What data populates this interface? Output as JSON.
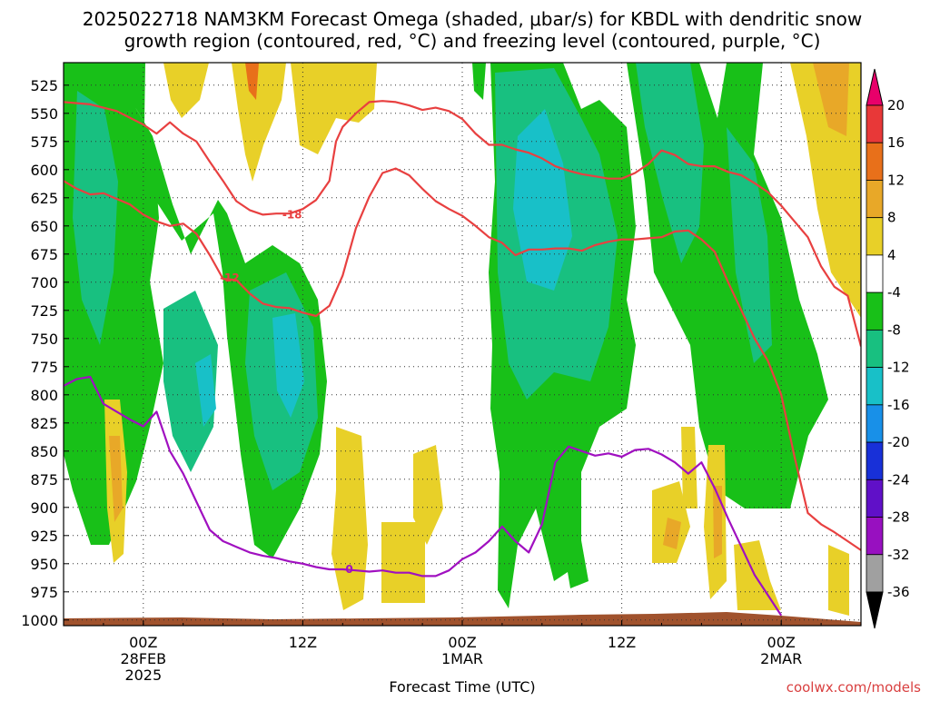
{
  "title": {
    "line1": "2025022718 NAM3KM Forecast Omega (shaded, μbar/s) for KBDL with dendritic snow",
    "line2": "growth region (contoured, red, °C) and freezing level (contoured, purple, °C)"
  },
  "credit": "coolwx.com/models",
  "chart_data": {
    "type": "heatmap",
    "xlabel": "Forecast Time (UTC)",
    "ylabel": "",
    "y_ticks": [
      "525",
      "550",
      "575",
      "600",
      "625",
      "650",
      "675",
      "700",
      "725",
      "750",
      "775",
      "800",
      "825",
      "850",
      "875",
      "900",
      "925",
      "950",
      "975",
      "1000"
    ],
    "x_ticks": [
      {
        "hour": 6,
        "lines": [
          "00Z",
          "28FEB",
          "2025"
        ]
      },
      {
        "hour": 18,
        "lines": [
          "12Z"
        ]
      },
      {
        "hour": 30,
        "lines": [
          "00Z",
          "1MAR"
        ]
      },
      {
        "hour": 42,
        "lines": [
          "12Z"
        ]
      },
      {
        "hour": 54,
        "lines": [
          "00Z",
          "2MAR"
        ]
      }
    ],
    "xlim_hours": [
      0,
      60
    ],
    "ylim_hpa": [
      505,
      1005
    ],
    "grid": true,
    "colorbar": {
      "levels": [
        "20",
        "16",
        "12",
        "8",
        "4",
        "-4",
        "-8",
        "-12",
        "-16",
        "-20",
        "-24",
        "-28",
        "-32",
        "-36"
      ],
      "colors": [
        "#e8006a",
        "#e83838",
        "#e8701a",
        "#e8a828",
        "#e8d028",
        "#ffffff",
        "#18c018",
        "#18c080",
        "#18c0c8",
        "#1890e8",
        "#1830d8",
        "#6010c8",
        "#9810c0",
        "#a0a0a0",
        "#000000"
      ]
    },
    "series": [
      {
        "label": "-18",
        "color": "#e84040",
        "label_at": {
          "hour": 17.2,
          "p": 640
        },
        "points": [
          [
            0,
            540
          ],
          [
            2,
            542
          ],
          [
            4,
            548
          ],
          [
            6,
            560
          ],
          [
            7,
            568
          ],
          [
            8,
            558
          ],
          [
            9,
            568
          ],
          [
            10,
            575
          ],
          [
            11,
            593
          ],
          [
            12,
            610
          ],
          [
            13,
            628
          ],
          [
            14,
            636
          ],
          [
            15,
            640
          ],
          [
            16,
            639
          ],
          [
            17,
            639
          ],
          [
            18,
            635
          ],
          [
            19,
            627
          ],
          [
            20,
            610
          ],
          [
            20.5,
            575
          ],
          [
            21,
            562
          ],
          [
            22,
            550
          ],
          [
            23,
            540
          ],
          [
            24,
            539
          ],
          [
            25,
            540
          ],
          [
            26,
            543
          ],
          [
            27,
            547
          ],
          [
            28,
            545
          ],
          [
            29,
            548
          ],
          [
            30,
            555
          ],
          [
            31,
            568
          ],
          [
            32,
            578
          ],
          [
            33,
            578
          ],
          [
            34,
            582
          ],
          [
            35,
            585
          ],
          [
            36,
            590
          ],
          [
            37,
            597
          ],
          [
            38,
            601
          ],
          [
            39,
            604
          ],
          [
            40,
            606
          ],
          [
            41,
            608
          ],
          [
            42,
            608
          ],
          [
            43,
            603
          ],
          [
            44,
            595
          ],
          [
            45,
            583
          ],
          [
            46,
            587
          ],
          [
            47,
            595
          ],
          [
            48,
            597
          ],
          [
            49,
            597
          ],
          [
            50,
            602
          ],
          [
            51,
            605
          ],
          [
            52,
            612
          ],
          [
            53,
            620
          ],
          [
            54,
            632
          ],
          [
            55,
            646
          ],
          [
            56,
            660
          ],
          [
            57,
            686
          ],
          [
            58,
            704
          ],
          [
            59,
            712
          ],
          [
            60,
            757
          ]
        ]
      },
      {
        "label": "-12",
        "color": "#e84040",
        "label_at": {
          "hour": 12.5,
          "p": 696
        },
        "points": [
          [
            0,
            610
          ],
          [
            1,
            617
          ],
          [
            2,
            622
          ],
          [
            3,
            621
          ],
          [
            4,
            626
          ],
          [
            5,
            631
          ],
          [
            6,
            640
          ],
          [
            7,
            646
          ],
          [
            8,
            650
          ],
          [
            9,
            648
          ],
          [
            10,
            657
          ],
          [
            11,
            676
          ],
          [
            12,
            697
          ],
          [
            13,
            698
          ],
          [
            14,
            710
          ],
          [
            15,
            719
          ],
          [
            16,
            722
          ],
          [
            17,
            723
          ],
          [
            18,
            727
          ],
          [
            19,
            730
          ],
          [
            20,
            721
          ],
          [
            21,
            694
          ],
          [
            22,
            652
          ],
          [
            23,
            624
          ],
          [
            24,
            603
          ],
          [
            25,
            599
          ],
          [
            26,
            605
          ],
          [
            27,
            617
          ],
          [
            28,
            628
          ],
          [
            29,
            635
          ],
          [
            30,
            641
          ],
          [
            31,
            650
          ],
          [
            32,
            660
          ],
          [
            33,
            665
          ],
          [
            34,
            676
          ],
          [
            35,
            671
          ],
          [
            36,
            671
          ],
          [
            37,
            670
          ],
          [
            38,
            670
          ],
          [
            39,
            672
          ],
          [
            40,
            667
          ],
          [
            41,
            664
          ],
          [
            42,
            662
          ],
          [
            43,
            662
          ],
          [
            44,
            661
          ],
          [
            45,
            660
          ],
          [
            46,
            655
          ],
          [
            47,
            654
          ],
          [
            48,
            662
          ],
          [
            49,
            673
          ],
          [
            50,
            700
          ],
          [
            51,
            725
          ],
          [
            52,
            750
          ],
          [
            53,
            770
          ],
          [
            54,
            800
          ],
          [
            55,
            855
          ],
          [
            56,
            905
          ],
          [
            57,
            915
          ],
          [
            58,
            922
          ],
          [
            59,
            930
          ],
          [
            60,
            938
          ]
        ]
      },
      {
        "label": "0",
        "color": "#a010c0",
        "label_at": {
          "hour": 21.5,
          "p": 955
        },
        "points": [
          [
            0,
            792
          ],
          [
            1,
            786
          ],
          [
            2,
            784
          ],
          [
            3,
            808
          ],
          [
            4,
            815
          ],
          [
            5,
            822
          ],
          [
            6,
            828
          ],
          [
            7,
            815
          ],
          [
            8,
            850
          ],
          [
            9,
            870
          ],
          [
            10,
            895
          ],
          [
            11,
            920
          ],
          [
            12,
            930
          ],
          [
            13,
            935
          ],
          [
            14,
            940
          ],
          [
            15,
            943
          ],
          [
            16,
            945
          ],
          [
            17,
            948
          ],
          [
            18,
            950
          ],
          [
            19,
            953
          ],
          [
            20,
            955
          ],
          [
            21,
            955
          ],
          [
            22,
            956
          ],
          [
            23,
            957
          ],
          [
            24,
            956
          ],
          [
            25,
            958
          ],
          [
            26,
            958
          ],
          [
            27,
            961
          ],
          [
            28,
            961
          ],
          [
            29,
            956
          ],
          [
            30,
            946
          ],
          [
            31,
            940
          ],
          [
            32,
            930
          ],
          [
            33,
            917
          ],
          [
            34,
            930
          ],
          [
            35,
            940
          ],
          [
            36,
            915
          ],
          [
            37,
            860
          ],
          [
            38,
            846
          ],
          [
            39,
            850
          ],
          [
            40,
            854
          ],
          [
            41,
            852
          ],
          [
            42,
            855
          ],
          [
            43,
            849
          ],
          [
            44,
            848
          ],
          [
            45,
            853
          ],
          [
            46,
            860
          ],
          [
            47,
            870
          ],
          [
            48,
            860
          ],
          [
            49,
            883
          ],
          [
            50,
            910
          ],
          [
            51,
            935
          ],
          [
            52,
            960
          ],
          [
            53,
            978
          ],
          [
            54,
            996
          ]
        ]
      }
    ]
  }
}
